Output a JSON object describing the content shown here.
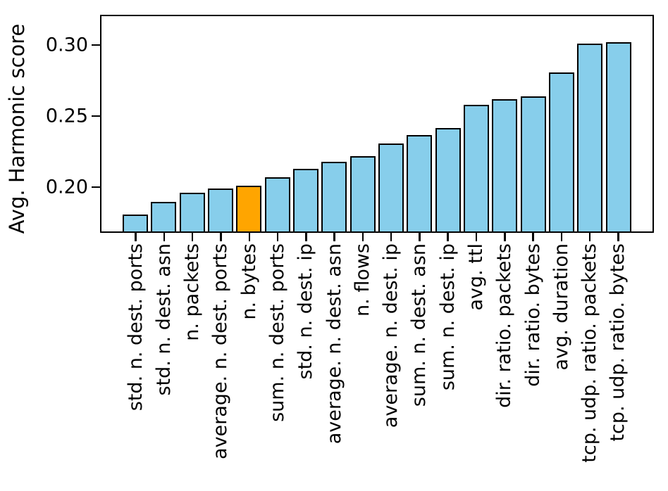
{
  "chart_data": {
    "type": "bar",
    "title": "",
    "xlabel": "",
    "ylabel": "Avg. Harmonic score",
    "categories": [
      "std. n. dest. ports",
      "std. n. dest. asn",
      "n. packets",
      "average. n. dest. ports",
      "n. bytes",
      "sum. n. dest. ports",
      "std. n. dest. ip",
      "average. n. dest. asn",
      "n. flows",
      "average. n. dest. ip",
      "sum. n. dest. asn",
      "sum. n. dest. ip",
      "avg. ttl",
      "dir. ratio. packets",
      "dir. ratio. bytes",
      "avg. duration",
      "tcp. udp. ratio. packets",
      "tcp. udp. ratio. bytes"
    ],
    "values": [
      0.181,
      0.19,
      0.196,
      0.199,
      0.201,
      0.207,
      0.213,
      0.218,
      0.222,
      0.231,
      0.237,
      0.242,
      0.258,
      0.262,
      0.264,
      0.281,
      0.301,
      0.302
    ],
    "highlight_index": 4,
    "highlighted_category": "n. bytes",
    "bar_default_color": "#87CEEB",
    "bar_highlight_color": "#FFA500",
    "edge_color": "#000000",
    "yticks": [
      0.2,
      0.25,
      0.3
    ],
    "ytick_labels": [
      "0.20",
      "0.25",
      "0.30"
    ],
    "ylim": [
      0.169,
      0.32
    ],
    "grid": false,
    "legend": null,
    "xtick_rotation_deg": 90
  }
}
